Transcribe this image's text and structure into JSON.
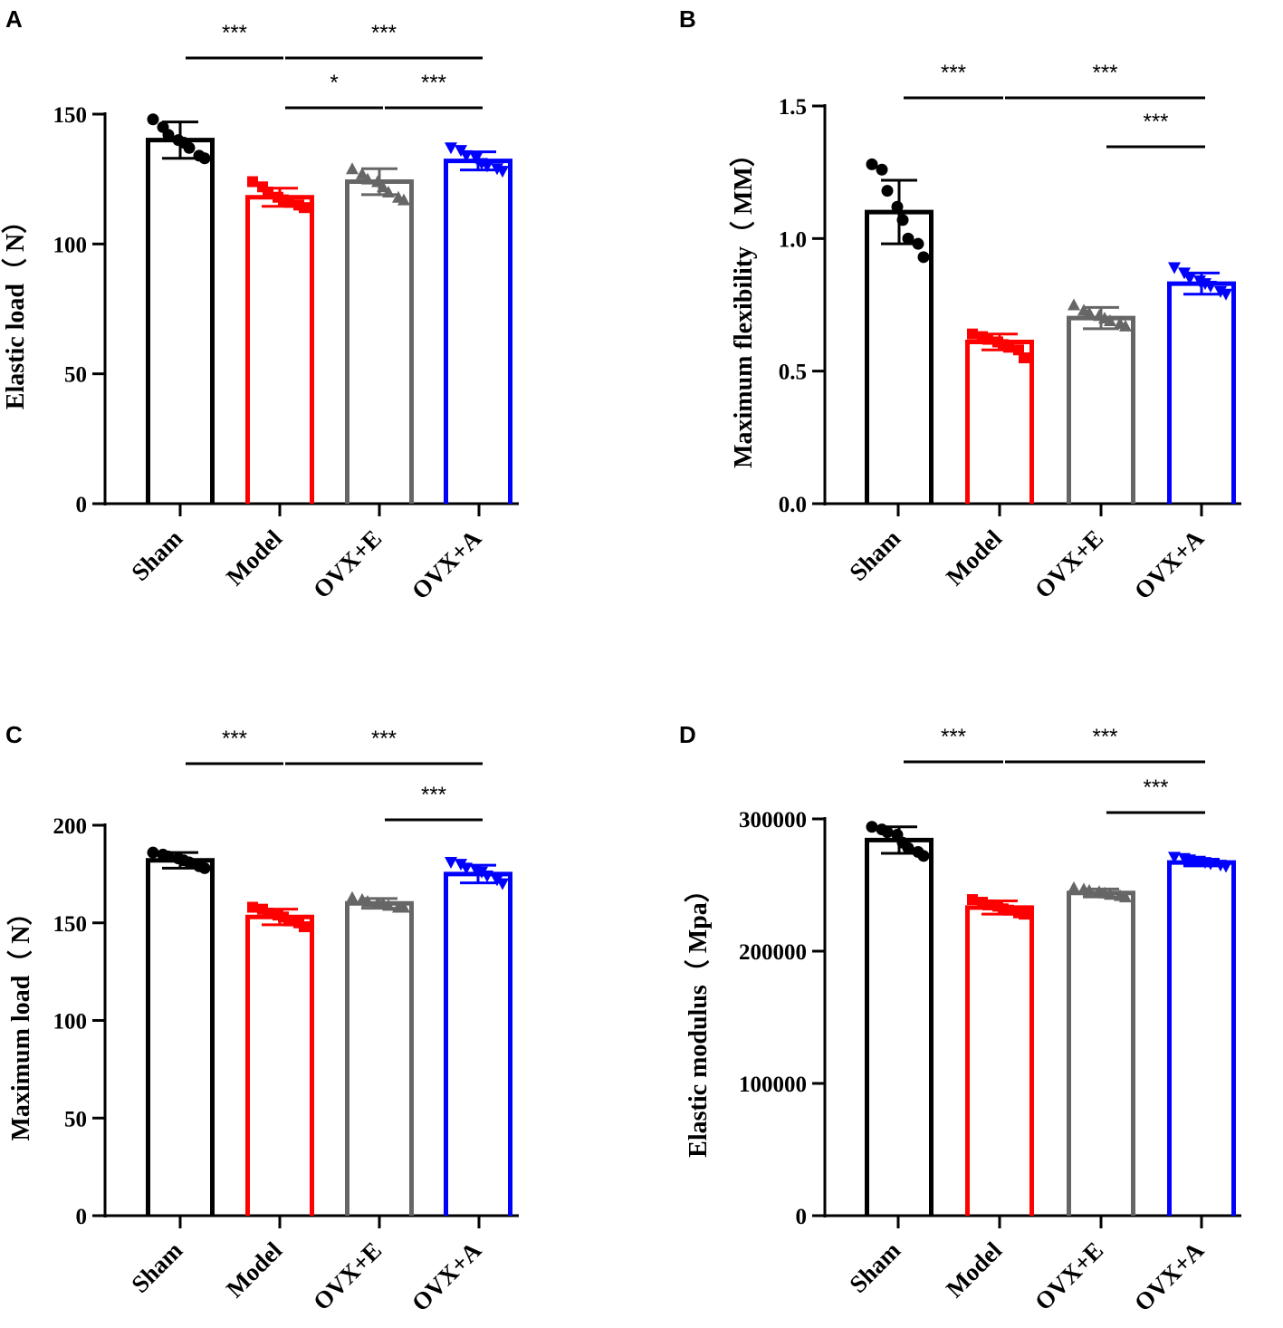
{
  "colors": {
    "sham": "#000000",
    "model": "#ff0000",
    "ovxe": "#666666",
    "ovxa": "#0000ff"
  },
  "chart_data": [
    {
      "panel": "A",
      "type": "bar",
      "categories": [
        "Sham",
        "Model",
        "OVX+E",
        "OVX+A"
      ],
      "values": [
        140,
        118,
        124,
        132
      ],
      "errors": [
        7,
        3.5,
        5,
        3.5
      ],
      "markers": [
        "circle",
        "square",
        "triangle-up",
        "triangle-down"
      ],
      "points": [
        [
          148,
          145,
          142,
          140,
          139,
          137,
          134,
          133
        ],
        [
          124,
          122,
          120,
          118,
          117,
          116,
          115,
          114
        ],
        [
          129,
          127,
          125,
          124,
          122,
          120,
          118,
          117
        ],
        [
          137,
          136,
          134,
          133,
          131,
          130,
          129,
          128
        ]
      ],
      "ylabel": "Elastic load（ N）",
      "ylim": [
        0,
        150
      ],
      "yticks": [
        "0",
        "50",
        "100",
        "150"
      ],
      "significance": [
        {
          "from": 0,
          "to": 1,
          "label": "***",
          "level": 0
        },
        {
          "from": 1,
          "to": 3,
          "label": "***",
          "level": 0
        },
        {
          "from": 1,
          "to": 2,
          "label": "*",
          "level": 1
        },
        {
          "from": 2,
          "to": 3,
          "label": "***",
          "level": 1
        }
      ]
    },
    {
      "panel": "B",
      "type": "bar",
      "categories": [
        "Sham",
        "Model",
        "OVX+E",
        "OVX+A"
      ],
      "values": [
        1.1,
        0.61,
        0.7,
        0.83
      ],
      "errors": [
        0.12,
        0.03,
        0.04,
        0.04
      ],
      "markers": [
        "circle",
        "square",
        "triangle-up",
        "triangle-down"
      ],
      "points": [
        [
          1.28,
          1.26,
          1.18,
          1.12,
          1.07,
          1.0,
          0.98,
          0.93
        ],
        [
          0.64,
          0.63,
          0.62,
          0.61,
          0.6,
          0.59,
          0.58,
          0.55
        ],
        [
          0.75,
          0.73,
          0.72,
          0.71,
          0.7,
          0.69,
          0.68,
          0.67
        ],
        [
          0.89,
          0.87,
          0.85,
          0.84,
          0.83,
          0.82,
          0.8,
          0.79
        ]
      ],
      "ylabel": "Maximum flexibility（ MM）",
      "ylim": [
        0,
        1.5
      ],
      "yticks": [
        "0.0",
        "0.5",
        "1.0",
        "1.5"
      ],
      "significance": [
        {
          "from": 0,
          "to": 1,
          "label": "***",
          "level": 0
        },
        {
          "from": 1,
          "to": 3,
          "label": "***",
          "level": 0
        },
        {
          "from": 2,
          "to": 3,
          "label": "***",
          "level": 1
        }
      ]
    },
    {
      "panel": "C",
      "type": "bar",
      "categories": [
        "Sham",
        "Model",
        "OVX+E",
        "OVX+A"
      ],
      "values": [
        182,
        153,
        160,
        175
      ],
      "errors": [
        4,
        4,
        2.5,
        4.5
      ],
      "markers": [
        "circle",
        "square",
        "triangle-up",
        "triangle-down"
      ],
      "points": [
        [
          186,
          185,
          184,
          183,
          182,
          181,
          179,
          178
        ],
        [
          158,
          157,
          155,
          154,
          153,
          151,
          150,
          148
        ],
        [
          163,
          162,
          161,
          160,
          160,
          159,
          158,
          158
        ],
        [
          181,
          180,
          178,
          177,
          176,
          174,
          172,
          170
        ]
      ],
      "ylabel": "Maximum load（ N）",
      "ylim": [
        0,
        200
      ],
      "yticks": [
        "0",
        "50",
        "100",
        "150",
        "200"
      ],
      "significance": [
        {
          "from": 0,
          "to": 1,
          "label": "***",
          "level": 0
        },
        {
          "from": 1,
          "to": 3,
          "label": "***",
          "level": 0
        },
        {
          "from": 2,
          "to": 3,
          "label": "***",
          "level": 1
        }
      ]
    },
    {
      "panel": "D",
      "type": "bar",
      "categories": [
        "Sham",
        "Model",
        "OVX+E",
        "OVX+A"
      ],
      "values": [
        284000,
        233000,
        244000,
        267000
      ],
      "errors": [
        10000,
        5000,
        3000,
        2500
      ],
      "markers": [
        "circle",
        "square",
        "triangle-up",
        "triangle-down"
      ],
      "points": [
        [
          294000,
          292000,
          290000,
          288000,
          282000,
          278000,
          275000,
          272000
        ],
        [
          239000,
          237000,
          235000,
          234000,
          232000,
          231000,
          229000,
          228000
        ],
        [
          248000,
          247000,
          246000,
          245000,
          244000,
          243000,
          242000,
          241000
        ],
        [
          271000,
          270000,
          269000,
          268000,
          267000,
          266000,
          265000,
          264000
        ]
      ],
      "ylabel": "Elastic modulus（ Mpa）",
      "ylim": [
        0,
        300000
      ],
      "yticks": [
        "0",
        "100000",
        "200000",
        "300000"
      ],
      "significance": [
        {
          "from": 0,
          "to": 1,
          "label": "***",
          "level": 0
        },
        {
          "from": 1,
          "to": 3,
          "label": "***",
          "level": 0
        },
        {
          "from": 2,
          "to": 3,
          "label": "***",
          "level": 1
        }
      ]
    }
  ]
}
